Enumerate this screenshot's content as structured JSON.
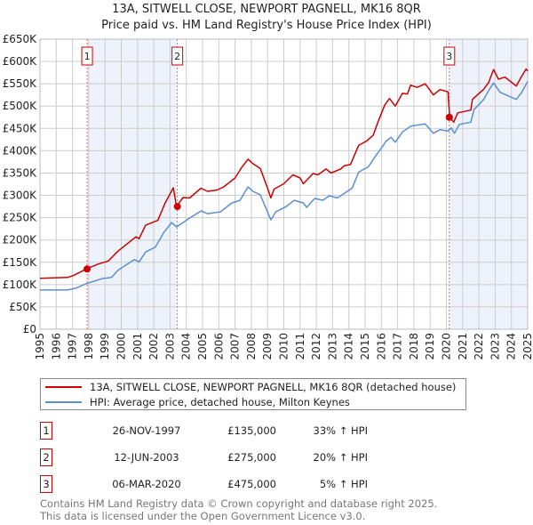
{
  "chart_data": {
    "type": "line",
    "title": "13A, SITWELL CLOSE, NEWPORT PAGNELL, MK16 8QR",
    "subtitle": "Price paid vs. HM Land Registry's House Price Index (HPI)",
    "xlim": [
      1995,
      2025
    ],
    "ylim": [
      0,
      650000
    ],
    "grid": true,
    "x_ticks": [
      "1995",
      "1996",
      "1997",
      "1998",
      "1999",
      "2000",
      "2001",
      "2002",
      "2003",
      "2004",
      "2005",
      "2006",
      "2007",
      "2008",
      "2009",
      "2010",
      "2011",
      "2012",
      "2013",
      "2014",
      "2015",
      "2016",
      "2017",
      "2018",
      "2019",
      "2020",
      "2021",
      "2022",
      "2023",
      "2024",
      "2025"
    ],
    "y_ticks": [
      {
        "value": 0,
        "label": "£0"
      },
      {
        "value": 50000,
        "label": "£50K"
      },
      {
        "value": 100000,
        "label": "£100K"
      },
      {
        "value": 150000,
        "label": "£150K"
      },
      {
        "value": 200000,
        "label": "£200K"
      },
      {
        "value": 250000,
        "label": "£250K"
      },
      {
        "value": 300000,
        "label": "£300K"
      },
      {
        "value": 350000,
        "label": "£350K"
      },
      {
        "value": 400000,
        "label": "£400K"
      },
      {
        "value": 450000,
        "label": "£450K"
      },
      {
        "value": 500000,
        "label": "£500K"
      },
      {
        "value": 550000,
        "label": "£550K"
      },
      {
        "value": 600000,
        "label": "£600K"
      },
      {
        "value": 650000,
        "label": "£650K"
      }
    ],
    "shaded_ranges": [
      [
        1997.9,
        2003.45
      ],
      [
        2020.18,
        2025
      ]
    ],
    "series": [
      {
        "name": "13A, SITWELL CLOSE, NEWPORT PAGNELL, MK16 8QR (detached house)",
        "color": "#cc0000",
        "x": [
          1995,
          1996.7,
          1997.1,
          1997.84,
          1998.57,
          1999.2,
          1999.8,
          2000.9,
          2001.1,
          2001.5,
          2002.25,
          2002.7,
          2003.2,
          2003.4,
          2003.8,
          2004.2,
          2004.9,
          2005.3,
          2005.9,
          2006.3,
          2007,
          2007.4,
          2007.8,
          2008.1,
          2008.55,
          2009,
          2009.2,
          2009.4,
          2010,
          2010.55,
          2011,
          2011.2,
          2011.8,
          2012.1,
          2012.6,
          2012.9,
          2013.5,
          2013.7,
          2014.1,
          2014.6,
          2015.1,
          2015.5,
          2015.8,
          2016.2,
          2016.5,
          2016.85,
          2017.3,
          2017.6,
          2017.8,
          2018.2,
          2018.7,
          2019.2,
          2019.6,
          2020.1,
          2020.2,
          2020.45,
          2020.7,
          2021.5,
          2021.6,
          2022.3,
          2022.6,
          2022.9,
          2023.2,
          2023.6,
          2024.3,
          2024.6,
          2024.9,
          2025
        ],
        "y": [
          114000,
          116000,
          121000,
          135000,
          146000,
          153000,
          175000,
          207000,
          203000,
          233000,
          244000,
          283000,
          317000,
          275000,
          295000,
          294000,
          316000,
          309000,
          312000,
          319000,
          339000,
          362000,
          381000,
          371000,
          360000,
          316000,
          294000,
          314000,
          326000,
          346000,
          339000,
          326000,
          349000,
          346000,
          359000,
          350000,
          359000,
          366000,
          369000,
          412000,
          422000,
          435000,
          465000,
          502000,
          517000,
          500000,
          529000,
          527000,
          547000,
          542000,
          550000,
          525000,
          537000,
          532000,
          475000,
          464000,
          485000,
          491000,
          515000,
          538000,
          553000,
          582000,
          560000,
          565000,
          545000,
          565000,
          583000,
          578000
        ]
      },
      {
        "name": "HPI: Average price, detached house, Milton Keynes",
        "color": "#5b8fd0",
        "x": [
          1995,
          1996.7,
          1997.2,
          1997.84,
          1998.8,
          1999.4,
          1999.8,
          2000.8,
          2001.1,
          2001.5,
          2002.1,
          2002.6,
          2003.1,
          2003.4,
          2004.2,
          2004.9,
          2005.3,
          2006.1,
          2006.8,
          2007.3,
          2007.8,
          2008.1,
          2008.55,
          2009,
          2009.2,
          2009.5,
          2010.1,
          2010.65,
          2011.2,
          2011.4,
          2011.9,
          2012.4,
          2012.8,
          2013.3,
          2013.9,
          2014.2,
          2014.6,
          2015.2,
          2015.6,
          2016,
          2016.3,
          2016.6,
          2016.85,
          2017.3,
          2017.8,
          2018.7,
          2019.2,
          2019.6,
          2020.1,
          2020.3,
          2020.5,
          2020.8,
          2021.5,
          2021.7,
          2022.3,
          2022.6,
          2022.9,
          2023.3,
          2024.3,
          2024.6,
          2025
        ],
        "y": [
          88000,
          88000,
          92000,
          102000,
          113000,
          116000,
          132000,
          156000,
          151000,
          173000,
          184000,
          216000,
          239000,
          229000,
          249000,
          265000,
          259000,
          263000,
          283000,
          289000,
          319000,
          309000,
          301000,
          263000,
          245000,
          263000,
          274000,
          289000,
          283000,
          273000,
          293000,
          289000,
          299000,
          294000,
          309000,
          316000,
          352000,
          364000,
          386000,
          406000,
          422000,
          430000,
          419000,
          442000,
          455000,
          460000,
          439000,
          447000,
          444000,
          451000,
          439000,
          459000,
          464000,
          492000,
          515000,
          535000,
          552000,
          531000,
          515000,
          529000,
          555000
        ]
      }
    ],
    "sales": [
      {
        "label": "1",
        "x": 1997.9,
        "y": 135000
      },
      {
        "label": "2",
        "x": 2003.45,
        "y": 275000
      },
      {
        "label": "3",
        "x": 2020.18,
        "y": 475000
      }
    ],
    "legend_placement": "bottom"
  },
  "legend": {
    "property": "13A, SITWELL CLOSE, NEWPORT PAGNELL, MK16 8QR (detached house)",
    "hpi": "HPI: Average price, detached house, Milton Keynes"
  },
  "transactions": [
    {
      "num": "1",
      "date": "26-NOV-1997",
      "price": "£135,000",
      "hpi": "33% ↑ HPI"
    },
    {
      "num": "2",
      "date": "12-JUN-2003",
      "price": "£275,000",
      "hpi": "20% ↑ HPI"
    },
    {
      "num": "3",
      "date": "06-MAR-2020",
      "price": "£475,000",
      "hpi": "5% ↑ HPI"
    }
  ],
  "footer": {
    "line1": "Contains HM Land Registry data © Crown copyright and database right 2025.",
    "line2": "This data is licensed under the Open Government Licence v3.0."
  }
}
